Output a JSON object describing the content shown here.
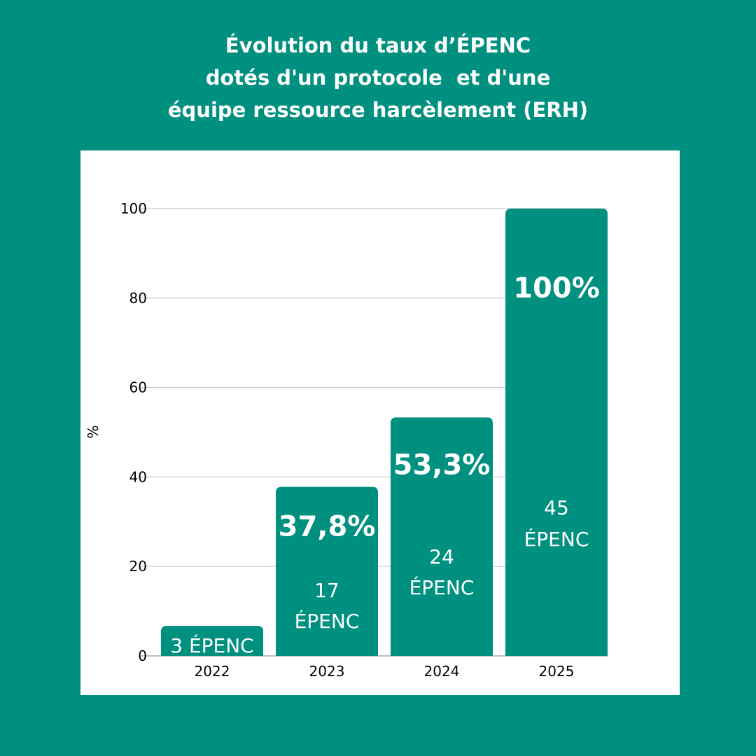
{
  "title_lines": [
    "Évolution du taux d’ÉPENC",
    "dotés d'un protocole  et d'une",
    "équipe ressource harcèlement (ERH)"
  ],
  "colors": {
    "background": "#009080",
    "bar": "#009080",
    "panel": "#ffffff",
    "grid": "#cccccc"
  },
  "chart_data": {
    "type": "bar",
    "ylabel": "%",
    "xlabel": "",
    "ylim": [
      0,
      100
    ],
    "yticks": [
      "0",
      "20",
      "40",
      "60",
      "80",
      "100"
    ],
    "grid": true,
    "categories": [
      "2022",
      "2023",
      "2024",
      "2025"
    ],
    "values": [
      6.7,
      37.8,
      53.3,
      100
    ],
    "value_labels": [
      "",
      "37,8%",
      "53,3%",
      "100%"
    ],
    "count_labels": [
      [
        "3 ÉPENC"
      ],
      [
        "17",
        "ÉPENC"
      ],
      [
        "24",
        "ÉPENC"
      ],
      [
        "45",
        "ÉPENC"
      ]
    ]
  }
}
